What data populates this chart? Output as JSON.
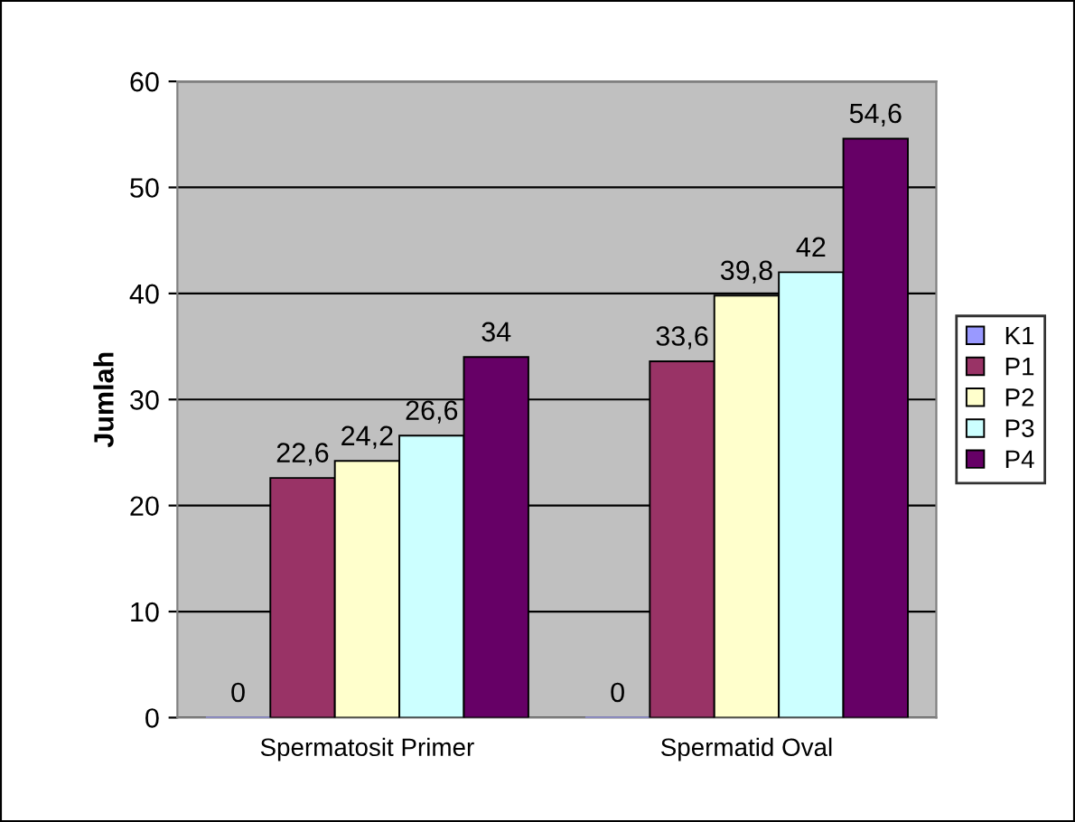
{
  "chart_data": {
    "type": "bar",
    "ylabel": "Jumlah",
    "categories": [
      "Spermatosit Primer",
      "Spermatid Oval"
    ],
    "series": [
      {
        "name": "K1",
        "color": "#9999ff",
        "values": [
          0,
          0
        ],
        "value_labels": [
          "0",
          "0"
        ]
      },
      {
        "name": "P1",
        "color": "#993366",
        "values": [
          22.6,
          33.6
        ],
        "value_labels": [
          "22,6",
          "33,6"
        ]
      },
      {
        "name": "P2",
        "color": "#ffffcc",
        "values": [
          24.2,
          39.8
        ],
        "value_labels": [
          "24,2",
          "39,8"
        ]
      },
      {
        "name": "P3",
        "color": "#ccffff",
        "values": [
          26.6,
          42
        ],
        "value_labels": [
          "26,6",
          "42"
        ]
      },
      {
        "name": "P4",
        "color": "#660066",
        "values": [
          34,
          54.6
        ],
        "value_labels": [
          "34",
          "54,6"
        ]
      }
    ],
    "ylim": [
      0,
      60
    ],
    "yticks": [
      0,
      10,
      20,
      30,
      40,
      50,
      60
    ],
    "grid": "y",
    "legend": "right"
  }
}
